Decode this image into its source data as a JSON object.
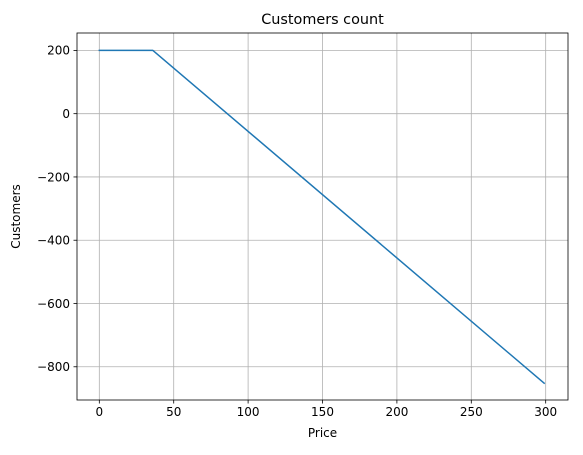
{
  "chart_data": {
    "type": "line",
    "title": "Customers count",
    "xlabel": "Price",
    "ylabel": "Customers",
    "xlim": [
      -15,
      315
    ],
    "ylim": [
      -905,
      255
    ],
    "x_ticks": [
      0,
      50,
      100,
      150,
      200,
      250,
      300
    ],
    "y_ticks": [
      200,
      0,
      -200,
      -400,
      -600,
      -800
    ],
    "x_tick_labels": [
      "0",
      "50",
      "100",
      "150",
      "200",
      "250",
      "300"
    ],
    "y_tick_labels": [
      "200",
      "0",
      "−200",
      "−400",
      "−600",
      "−800"
    ],
    "grid": true,
    "series": [
      {
        "color": "#1f77b4",
        "x": [
          0,
          36,
          299
        ],
        "y": [
          200,
          200,
          -852
        ]
      }
    ]
  }
}
